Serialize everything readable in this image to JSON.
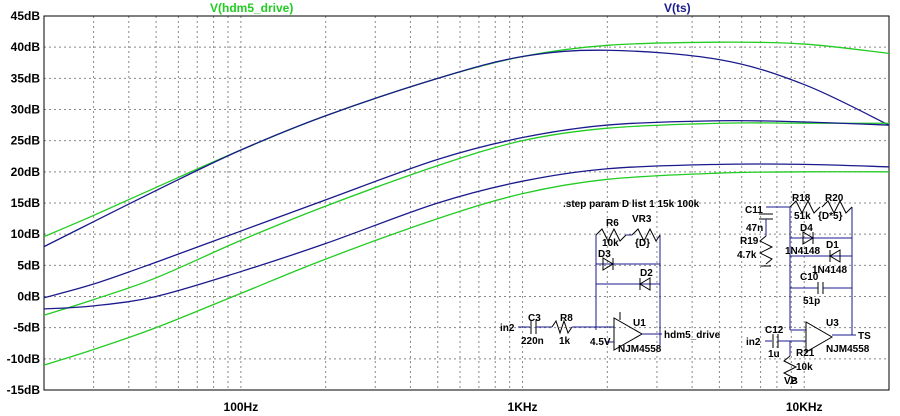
{
  "chart_data": {
    "type": "line",
    "x_scale": "log",
    "xlim": [
      20,
      20000
    ],
    "ylim": [
      -15,
      45
    ],
    "ytick_values": [
      45,
      40,
      35,
      30,
      25,
      20,
      15,
      10,
      5,
      0,
      -5,
      -10,
      -15
    ],
    "ytick_labels": [
      "45dB",
      "40dB",
      "35dB",
      "30dB",
      "25dB",
      "20dB",
      "15dB",
      "10dB",
      "5dB",
      "0dB",
      "-5dB",
      "-10dB",
      "-15dB"
    ],
    "xtick_values": [
      100,
      1000,
      10000
    ],
    "xtick_labels": [
      "100Hz",
      "1KHz",
      "10KHz"
    ],
    "grid": true,
    "series": [
      {
        "name": "V(hdm5_drive)",
        "color": "#22cc22",
        "x": [
          20,
          30,
          50,
          100,
          200,
          500,
          1000,
          2000,
          5000,
          10000,
          20000
        ],
        "y": [
          9.6,
          13,
          17.5,
          23.5,
          29,
          35,
          38.5,
          40.3,
          40.8,
          40.5,
          39
        ]
      },
      {
        "name": "V(ts)",
        "color": "#1a1a8c",
        "x": [
          20,
          30,
          50,
          100,
          200,
          500,
          1000,
          2000,
          5000,
          10000,
          20000
        ],
        "y": [
          8,
          12,
          17,
          23.5,
          29,
          35,
          38.5,
          39.5,
          38,
          34,
          27.5
        ]
      },
      {
        "name": "V(hdm5_drive)",
        "color": "#22cc22",
        "x": [
          20,
          30,
          50,
          100,
          200,
          500,
          1000,
          2000,
          5000,
          10000,
          20000
        ],
        "y": [
          -3,
          -0.5,
          3,
          9,
          14.5,
          21,
          25,
          27,
          27.8,
          27.8,
          27.8
        ]
      },
      {
        "name": "V(ts)",
        "color": "#1a1a8c",
        "x": [
          20,
          30,
          50,
          100,
          200,
          500,
          1000,
          2000,
          5000,
          10000,
          20000
        ],
        "y": [
          -0.2,
          2,
          5.5,
          10.5,
          15.5,
          22,
          25.5,
          27.5,
          28.2,
          28,
          27.5
        ]
      },
      {
        "name": "V(hdm5_drive)",
        "color": "#22cc22",
        "x": [
          20,
          30,
          50,
          100,
          200,
          500,
          1000,
          2000,
          5000,
          10000,
          20000
        ],
        "y": [
          -11,
          -8.5,
          -5,
          0.5,
          6,
          12.5,
          16.5,
          18.8,
          19.8,
          20,
          20
        ]
      },
      {
        "name": "V(ts)",
        "color": "#1a1a8c",
        "x": [
          20,
          30,
          50,
          100,
          200,
          500,
          1000,
          2000,
          5000,
          10000,
          20000
        ],
        "y": [
          -2,
          -1.5,
          0,
          4,
          8.5,
          15,
          18.5,
          20.5,
          21.2,
          21.2,
          20.8
        ]
      }
    ],
    "trace_labels": [
      {
        "text": "V(hdm5_drive)",
        "color": "#22cc22"
      },
      {
        "text": "V(ts)",
        "color": "#1a1a8c"
      }
    ]
  },
  "schematic": {
    "directive": ".step param D list 1 15k 100k",
    "labels": {
      "r6": "R6",
      "vr3": "VR3",
      "r6_val": "10k",
      "vr3_val": "{D}",
      "d3": "D3",
      "d2": "D2",
      "c3": "C3",
      "r8": "R8",
      "c3_val": "220n",
      "r8_val": "1k",
      "in2a": "in2",
      "u1": "U1",
      "u1_model": "NJM4558",
      "bias1": "4.5V",
      "net1": "hdm5_drive",
      "c11": "C11",
      "c11_val": "47n",
      "r19": "R19",
      "r19_val": "4.7k",
      "r18": "R18",
      "r20": "R20",
      "r18_val": "51k",
      "r20_val": "{D*5}",
      "d4": "D4",
      "d4_model": "1N4148",
      "d1": "D1",
      "d1_model": "1N4148",
      "c10": "C10",
      "c10_val": "51p",
      "c12": "C12",
      "in2b": "in2",
      "c12_val": "1u",
      "r21": "R21",
      "r21_val": "10k",
      "u3": "U3",
      "u3_model": "NJM4558",
      "net2": "TS",
      "vb": "VB"
    }
  }
}
